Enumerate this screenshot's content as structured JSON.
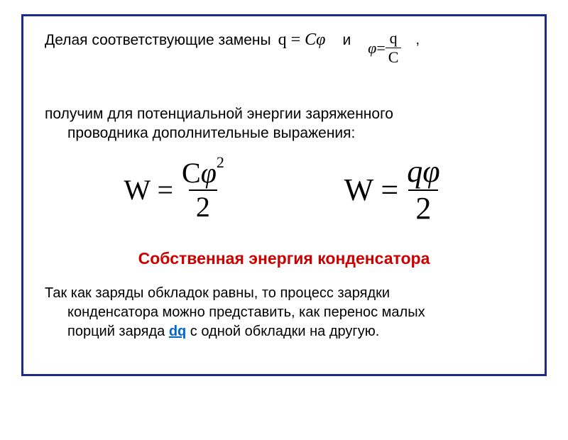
{
  "line1_text": "Делая соответствующие замены",
  "eq1_lhs": "q",
  "eq1_eq": " = ",
  "eq1_rhs": "Cφ",
  "and_text": "и",
  "eq2_lhs": "φ",
  "eq2_eq": " = ",
  "eq2_num": "q",
  "eq2_den": "C",
  "comma": ",",
  "line2a": "получим для потенциальной энергии заряженного",
  "line2b": "проводника дополнительные выражения:",
  "eqW1_lhs": "W = ",
  "eqW1_num_pre": "C",
  "eqW1_num_phi": "φ",
  "eqW1_num_sup": "2",
  "eqW1_den": "2",
  "eqW2_lhs": "W = ",
  "eqW2_num": "qφ",
  "eqW2_den": "2",
  "title_red": "Собственная энергия конденсатора",
  "line3a": "Так как заряды обкладок равны, то процесс зарядки",
  "line3b": "конденсатора можно представить, как перенос малых",
  "line3c_pre": "порций заряда ",
  "line3c_dq": "dq",
  "line3c_post": " с одной обкладки на другую.",
  "colors": {
    "frame_border": "#1a2b8c",
    "text": "#000000",
    "red": "#cc0000",
    "link": "#0066cc",
    "background": "#ffffff"
  }
}
